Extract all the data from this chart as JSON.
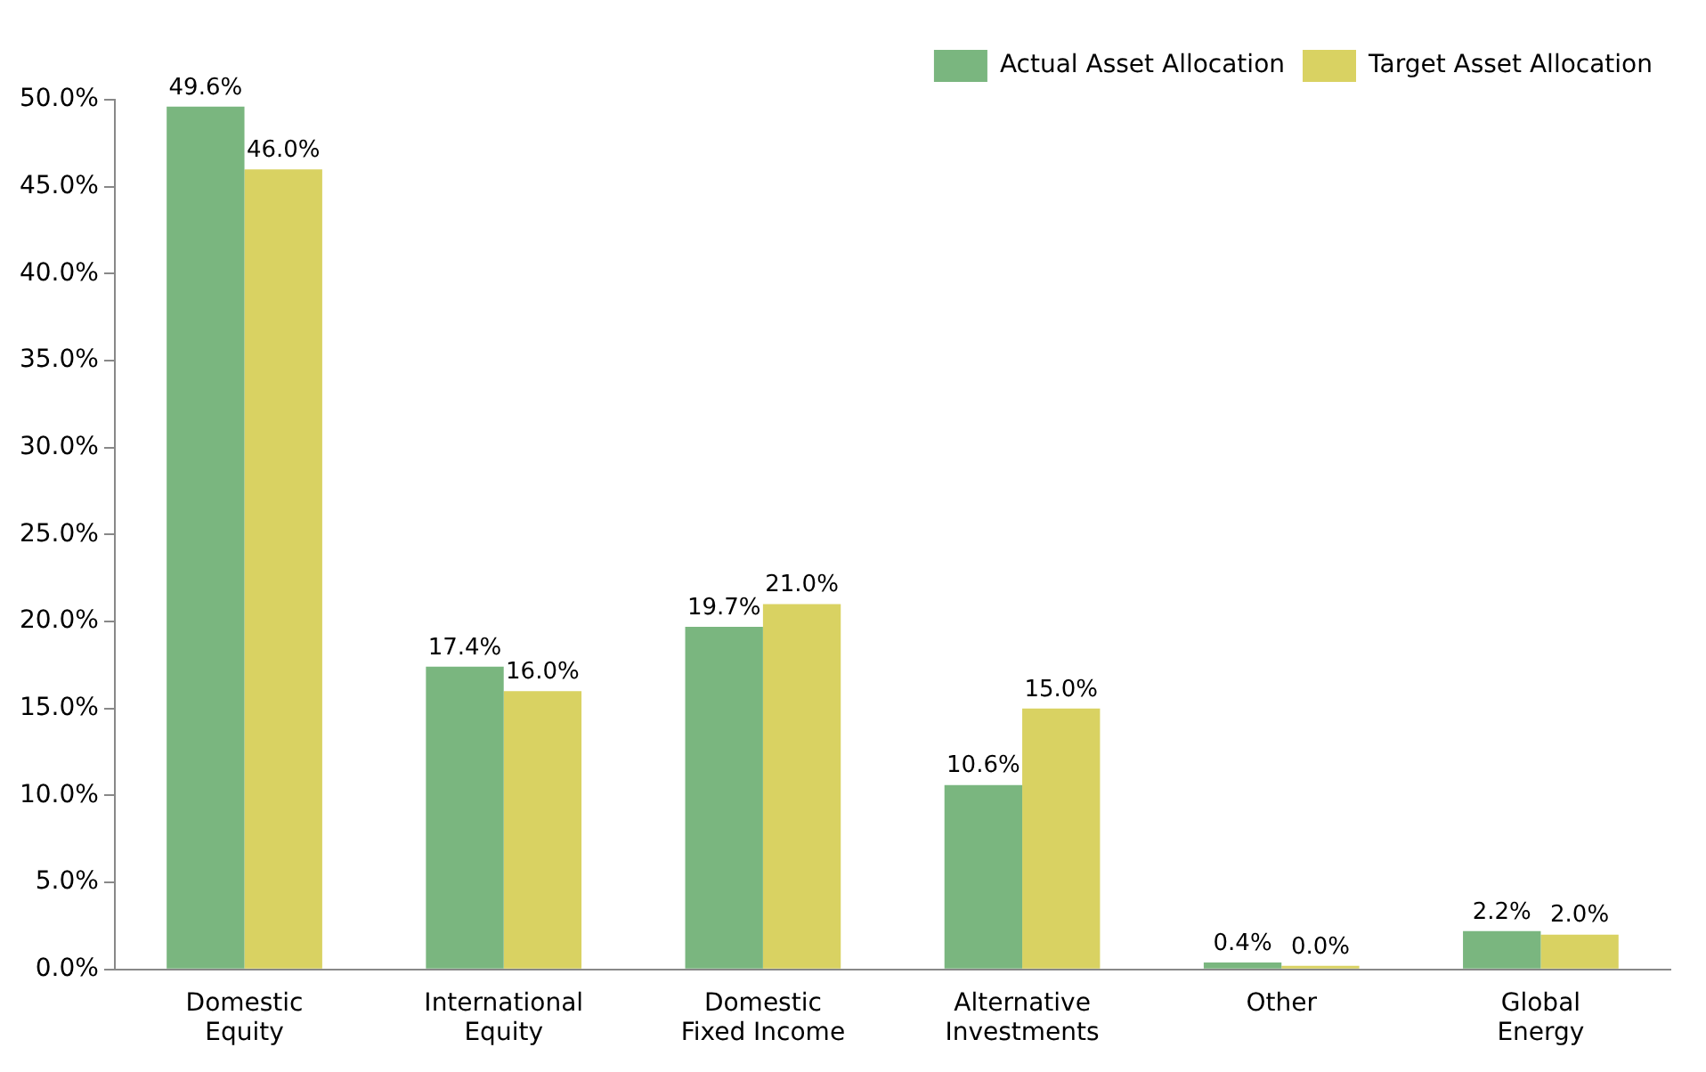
{
  "chart_data": {
    "type": "bar",
    "categories": [
      "Domestic\nEquity",
      "International\nEquity",
      "Domestic\nFixed Income",
      "Alternative\nInvestments",
      "Other",
      "Global\nEnergy"
    ],
    "series": [
      {
        "name": "Actual Asset Allocation",
        "color": "#7ab67f",
        "values": [
          49.6,
          17.4,
          19.7,
          10.6,
          0.4,
          2.2
        ],
        "value_labels": [
          "49.6%",
          "17.4%",
          "19.7%",
          "10.6%",
          "0.4%",
          "2.2%"
        ]
      },
      {
        "name": "Target Asset Allocation",
        "color": "#d9d262",
        "values": [
          46.0,
          16.0,
          21.0,
          15.0,
          0.0,
          2.0
        ],
        "value_labels": [
          "46.0%",
          "16.0%",
          "21.0%",
          "15.0%",
          "0.0%",
          "2.0%"
        ]
      }
    ],
    "ylim": [
      0,
      50
    ],
    "yticks": [
      {
        "value": 0,
        "label": "0.0%"
      },
      {
        "value": 5,
        "label": "5.0%"
      },
      {
        "value": 10,
        "label": "10.0%"
      },
      {
        "value": 15,
        "label": "15.0%"
      },
      {
        "value": 20,
        "label": "20.0%"
      },
      {
        "value": 25,
        "label": "25.0%"
      },
      {
        "value": 30,
        "label": "30.0%"
      },
      {
        "value": 35,
        "label": "35.0%"
      },
      {
        "value": 40,
        "label": "40.0%"
      },
      {
        "value": 45,
        "label": "45.0%"
      },
      {
        "value": 50,
        "label": "50.0%"
      }
    ],
    "grid": false,
    "legend": "top right"
  }
}
